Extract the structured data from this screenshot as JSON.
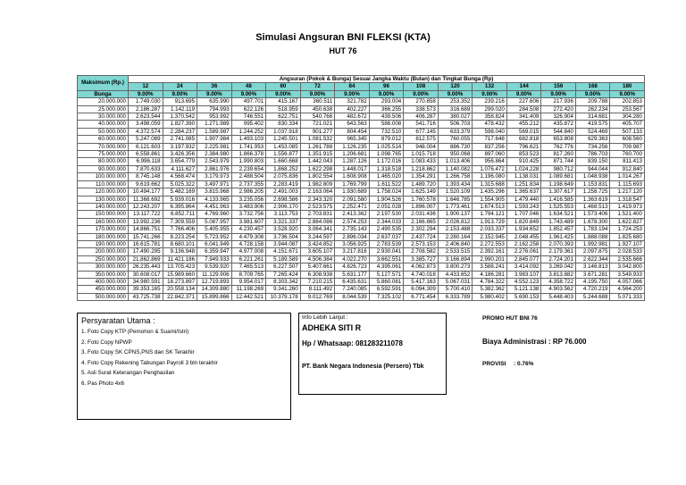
{
  "header": {
    "title": "Simulasi Angsuran BNI FLEKSI (KTA)",
    "subtitle": "HUT 76"
  },
  "table": {
    "col_header": "Maksimum (Rp.)",
    "span_header": "Angsuran (Pokok & Bunga) Sesuai Jangka Waktu (Bulan) dan Tingkat Bunga (Rp)",
    "rate_header": "Bunga",
    "months": [
      "12",
      "24",
      "36",
      "48",
      "60",
      "72",
      "84",
      "96",
      "108",
      "120",
      "132",
      "144",
      "156",
      "168",
      "180"
    ],
    "rates": [
      "9.00%",
      "9.00%",
      "9.00%",
      "9.00%",
      "9.00%",
      "9.00%",
      "9.00%",
      "9.00%",
      "9.00%",
      "9.00%",
      "9.00%",
      "9.00%",
      "9.00%",
      "9.00%",
      "9.00%"
    ],
    "rows": [
      [
        "20.000.000",
        "1.749.030",
        "913.695",
        "635.990",
        "497.701",
        "415.167",
        "360.511",
        "321.782",
        "293.004",
        "270.858",
        "253.352",
        "239.216",
        "227.606",
        "217.936",
        "209.788",
        "202.853"
      ],
      [
        "25.000.000",
        "2.186.287",
        "1.142.119",
        "794.993",
        "622.126",
        "518.959",
        "450.638",
        "402.227",
        "366.255",
        "338.573",
        "316.689",
        "299.020",
        "284.508",
        "272.420",
        "262.234",
        "253.567"
      ],
      [
        "30.000.000",
        "2.623.544",
        "1.370.542",
        "953.992",
        "746.551",
        "622.751",
        "540.766",
        "482.672",
        "439.506",
        "406.287",
        "380.027",
        "358.824",
        "341.409",
        "326.904",
        "314.681",
        "304.280"
      ],
      [
        "40.000.000",
        "3.498.059",
        "1.827.390",
        "1.271.989",
        "995.402",
        "830.334",
        "721.021",
        "643.563",
        "586.008",
        "541.716",
        "506.703",
        "478.432",
        "455.212",
        "435.872",
        "419.575",
        "405.707"
      ],
      [
        "50.000.000",
        "4.372.574",
        "2.284.237",
        "1.589.987",
        "1.244.252",
        "1.037.918",
        "901.277",
        "804.454",
        "732.510",
        "677.145",
        "633.379",
        "598.040",
        "569.015",
        "544.840",
        "524.469",
        "507.133"
      ],
      [
        "60.000.000",
        "5.247.089",
        "2.741.085",
        "1.907.984",
        "1.493.103",
        "1.245.501",
        "1.081.532",
        "965.345",
        "879.012",
        "812.575",
        "760.055",
        "717.648",
        "682.818",
        "653.808",
        "629.363",
        "608.560"
      ],
      [
        "70.000.000",
        "6.121.603",
        "3.197.932",
        "2.225.981",
        "1.741.953",
        "1.453.085",
        "1.261.788",
        "1.126.235",
        "1.025.514",
        "948.004",
        "886.730",
        "837.256",
        "796.621",
        "762.776",
        "734.256",
        "709.987"
      ],
      [
        "75.000.000",
        "6.558.861",
        "3.426.356",
        "2.384.980",
        "1.866.378",
        "1.556.877",
        "1.351.915",
        "1.206.681",
        "1.098.765",
        "1.015.718",
        "950.068",
        "897.060",
        "853.523",
        "817.260",
        "786.703",
        "760.700"
      ],
      [
        "80.000.000",
        "6.996.118",
        "3.654.779",
        "2.543.979",
        "1.990.803",
        "1.660.668",
        "1.442.043",
        "1.287.126",
        "1.172.016",
        "1.083.433",
        "1.013.406",
        "956.864",
        "910.425",
        "871.744",
        "839.150",
        "811.413"
      ],
      [
        "90.000.000",
        "7.870.633",
        "4.111.627",
        "2.861.976",
        "2.239.654",
        "1.868.252",
        "1.622.298",
        "1.448.017",
        "1.318.518",
        "1.218.862",
        "1.140.082",
        "1.076.472",
        "1.024.228",
        "980.712",
        "944.044",
        "912.840"
      ],
      [
        "100.000.000",
        "8.745.148",
        "4.568.474",
        "3.179.973",
        "2.488.504",
        "2.075.836",
        "1.802.554",
        "1.608.908",
        "1.465.020",
        "1.354.291",
        "1.266.758",
        "1.196.080",
        "1.138.031",
        "1.089.681",
        "1.048.938",
        "1.014.267"
      ],
      [
        "110.000.000",
        "9.619.662",
        "5.025.322",
        "3.497.971",
        "2.737.355",
        "2.283.419",
        "1.982.809",
        "1.769.799",
        "1.611.522",
        "1.489.720",
        "1.393.434",
        "1.315.688",
        "1.251.834",
        "1.198.649",
        "1.153.831",
        "1.115.693"
      ],
      [
        "120.000.000",
        "10.494.177",
        "5.482.169",
        "3.815.968",
        "2.986.205",
        "2.491.003",
        "2.163.064",
        "1.930.689",
        "1.758.024",
        "1.625.149",
        "1.520.109",
        "1.435.296",
        "1.365.637",
        "1.307.617",
        "1.258.725",
        "1.217.120"
      ],
      [
        "130.000.000",
        "11.368.692",
        "5.939.016",
        "4.133.965",
        "3.235.056",
        "2.698.586",
        "2.343.320",
        "2.091.580",
        "1.904.526",
        "1.760.578",
        "1.646.785",
        "1.554.905",
        "1.479.440",
        "1.416.585",
        "1.363.619",
        "1.318.547"
      ],
      [
        "140.000.000",
        "12.243.207",
        "6.395.864",
        "4.451.963",
        "3.483.906",
        "2.906.170",
        "2.523.575",
        "2.252.471",
        "2.051.028",
        "1.896.007",
        "1.773.461",
        "1.674.513",
        "1.593.243",
        "1.525.553",
        "1.468.513",
        "1.419.973"
      ],
      [
        "150.000.000",
        "13.117.722",
        "6.852.711",
        "4.769.960",
        "3.732.756",
        "3.113.753",
        "2.703.831",
        "2.413.362",
        "2.197.530",
        "2.031.436",
        "1.900.137",
        "1.794.121",
        "1.707.046",
        "1.634.521",
        "1.573.406",
        "1.521.400"
      ],
      [
        "160.000.000",
        "13.992.236",
        "7.309.559",
        "5.087.957",
        "3.981.607",
        "3.321.337",
        "2.884.086",
        "2.574.253",
        "2.344.033",
        "2.166.865",
        "2.026.812",
        "1.913.729",
        "1.820.849",
        "1.743.489",
        "1.678.300",
        "1.622.827"
      ],
      [
        "170.000.000",
        "14.866.751",
        "7.766.406",
        "5.405.955",
        "4.230.457",
        "3.528.920",
        "3.064.341",
        "2.735.143",
        "2.490.535",
        "2.302.294",
        "2.153.488",
        "2.033.337",
        "1.934.652",
        "1.852.457",
        "1.783.194",
        "1.724.253"
      ],
      [
        "180.000.000",
        "15.741.266",
        "8.223.254",
        "5.723.952",
        "4.479.308",
        "3.736.504",
        "3.244.597",
        "2.896.034",
        "2.637.037",
        "2.437.724",
        "2.280.164",
        "2.152.945",
        "2.048.455",
        "1.961.425",
        "1.888.088",
        "1.825.680"
      ],
      [
        "190.000.000",
        "16.615.781",
        "8.680.101",
        "6.041.949",
        "4.728.158",
        "3.944.087",
        "3.424.852",
        "3.056.925",
        "2.783.539",
        "2.573.153",
        "2.406.840",
        "2.272.553",
        "2.162.258",
        "2.070.393",
        "1.992.981",
        "1.927.107"
      ],
      [
        "200.000.000",
        "17.490.295",
        "9.136.948",
        "6.359.947",
        "4.977.008",
        "4.151.671",
        "3.605.107",
        "3.217.816",
        "2.930.041",
        "2.708.582",
        "2.533.515",
        "2.392.161",
        "2.276.061",
        "2.179.361",
        "2.097.875",
        "2.028.533"
      ],
      [
        "250.000.000",
        "21.862.869",
        "11.421.186",
        "7.949.933",
        "6.221.261",
        "5.189.589",
        "4.506.384",
        "4.022.270",
        "3.662.551",
        "3.385.727",
        "3.166.894",
        "2.990.201",
        "2.845.077",
        "2.724.201",
        "2.622.344",
        "2.535.666"
      ],
      [
        "300.000.000",
        "26.235.443",
        "13.705.423",
        "9.539.920",
        "7.465.513",
        "6.227.507",
        "5.407.661",
        "4.826.723",
        "4.395.061",
        "4.062.873",
        "3.800.273",
        "3.588.241",
        "3.414.092",
        "3.269.042",
        "3.146.813",
        "3.042.800"
      ],
      [
        "350.000.000",
        "30.608.017",
        "15.989.660",
        "11.129.906",
        "8.709.765",
        "7.265.424",
        "6.308.938",
        "5.631.177",
        "5.127.571",
        "4.740.018",
        "4.433.652",
        "4.186.281",
        "3.983.107",
        "3.813.882",
        "3.671.281",
        "3.549.933"
      ],
      [
        "400.000.000",
        "34.980.591",
        "18.273.897",
        "12.719.893",
        "9.954.017",
        "8.303.342",
        "7.210.215",
        "6.435.631",
        "5.860.081",
        "5.417.163",
        "5.067.031",
        "4.784.322",
        "4.552.123",
        "4.358.722",
        "4.195.750",
        "4.057.066"
      ],
      [
        "450.000.000",
        "39.353.165",
        "20.558.134",
        "14.309.880",
        "11.198.269",
        "9.341.260",
        "8.111.492",
        "7.240.085",
        "6.592.591",
        "6.094.309",
        "5.700.410",
        "5.382.362",
        "5.121.138",
        "4.903.562",
        "4.720.219",
        "4.564.200"
      ],
      [
        "500.000.000",
        "43.725.738",
        "22.842.371",
        "15.899.866",
        "12.442.521",
        "10.379.178",
        "9.012.769",
        "8.044.539",
        "7.325.102",
        "6.771.454",
        "6.333.789",
        "5.980.402",
        "5.690.153",
        "5.448.403",
        "5.244.688",
        "5.071.333"
      ]
    ]
  },
  "requirements": {
    "title": "Persyaratan Utama :",
    "items": [
      "1. Foto Copy KTP (Pemohon & Suami/Istri)",
      "2. Foto Copy NPWP",
      "3. Foto Copy SK CPNS,PNS dan SK Terakhir",
      "4. Foto Copy Rekening Tabungan Payroll 3 bln terakhir",
      "5. Asli Surat Keterangan Penghasilan",
      "6. Pas Photo 4x6"
    ]
  },
  "contact": {
    "label": "Info Lebih Lanjut :",
    "name": "ADHEKA SITI R",
    "phone": "Hp / Whatsaap: 081283211078",
    "company": "PT. Bank Negara Indonesia (Persero) Tbk"
  },
  "promo": {
    "title": "PROMO HUT BNI 76",
    "admin_fee": "Biaya Administrasi : RP 76.000",
    "provisi_label": "PROVISI",
    "provisi_value": ": 0.76%"
  }
}
